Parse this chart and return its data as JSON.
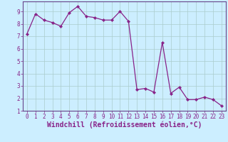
{
  "x": [
    0,
    1,
    2,
    3,
    4,
    5,
    6,
    7,
    8,
    9,
    10,
    11,
    12,
    13,
    14,
    15,
    16,
    17,
    18,
    19,
    20,
    21,
    22,
    23
  ],
  "y": [
    7.2,
    8.8,
    8.3,
    8.1,
    7.8,
    8.9,
    9.4,
    8.6,
    8.5,
    8.3,
    8.3,
    9.0,
    8.2,
    2.7,
    2.8,
    2.5,
    6.5,
    2.4,
    2.9,
    1.9,
    1.9,
    2.1,
    1.9,
    1.4
  ],
  "line_color": "#882288",
  "marker": "D",
  "marker_size": 2.2,
  "bg_color": "#cceeff",
  "grid_color": "#aacccc",
  "xlabel": "Windchill (Refroidissement éolien,°C)",
  "xlim": [
    -0.5,
    23.5
  ],
  "ylim": [
    1,
    9.8
  ],
  "yticks": [
    1,
    2,
    3,
    4,
    5,
    6,
    7,
    8,
    9
  ],
  "xticks": [
    0,
    1,
    2,
    3,
    4,
    5,
    6,
    7,
    8,
    9,
    10,
    11,
    12,
    13,
    14,
    15,
    16,
    17,
    18,
    19,
    20,
    21,
    22,
    23
  ],
  "tick_fontsize": 5.5,
  "xlabel_fontsize": 7.0,
  "tick_color": "#882288",
  "spine_color": "#664488",
  "label_color": "#882288"
}
